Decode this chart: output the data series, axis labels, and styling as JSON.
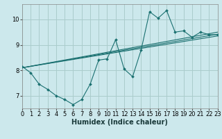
{
  "background_color": "#cce8ec",
  "grid_color": "#aacccc",
  "line_color": "#1a7070",
  "xlabel": "Humidex (Indice chaleur)",
  "xlim": [
    0,
    23
  ],
  "ylim": [
    6.5,
    10.6
  ],
  "yticks": [
    7,
    8,
    9,
    10
  ],
  "xticks": [
    0,
    1,
    2,
    3,
    4,
    5,
    6,
    7,
    8,
    9,
    10,
    11,
    12,
    13,
    14,
    15,
    16,
    17,
    18,
    19,
    20,
    21,
    22,
    23
  ],
  "xlabel_fontsize": 7,
  "tick_fontsize": 6,
  "zigzag": {
    "x": [
      0,
      1,
      2,
      3,
      4,
      5,
      6,
      7,
      8,
      9,
      10,
      11,
      12,
      13,
      14,
      15,
      16,
      17,
      18,
      19,
      20,
      21,
      22,
      23
    ],
    "y": [
      8.15,
      7.9,
      7.45,
      7.25,
      7.0,
      6.85,
      6.65,
      6.85,
      7.45,
      8.4,
      8.45,
      9.2,
      8.05,
      7.75,
      8.8,
      10.3,
      10.05,
      10.35,
      9.5,
      9.55,
      9.3,
      9.5,
      9.4,
      9.4
    ]
  },
  "trend_lines": [
    {
      "x": [
        0,
        23
      ],
      "y": [
        8.1,
        9.35
      ]
    },
    {
      "x": [
        0,
        23
      ],
      "y": [
        8.1,
        9.42
      ]
    },
    {
      "x": [
        0,
        23
      ],
      "y": [
        8.1,
        9.5
      ]
    }
  ]
}
